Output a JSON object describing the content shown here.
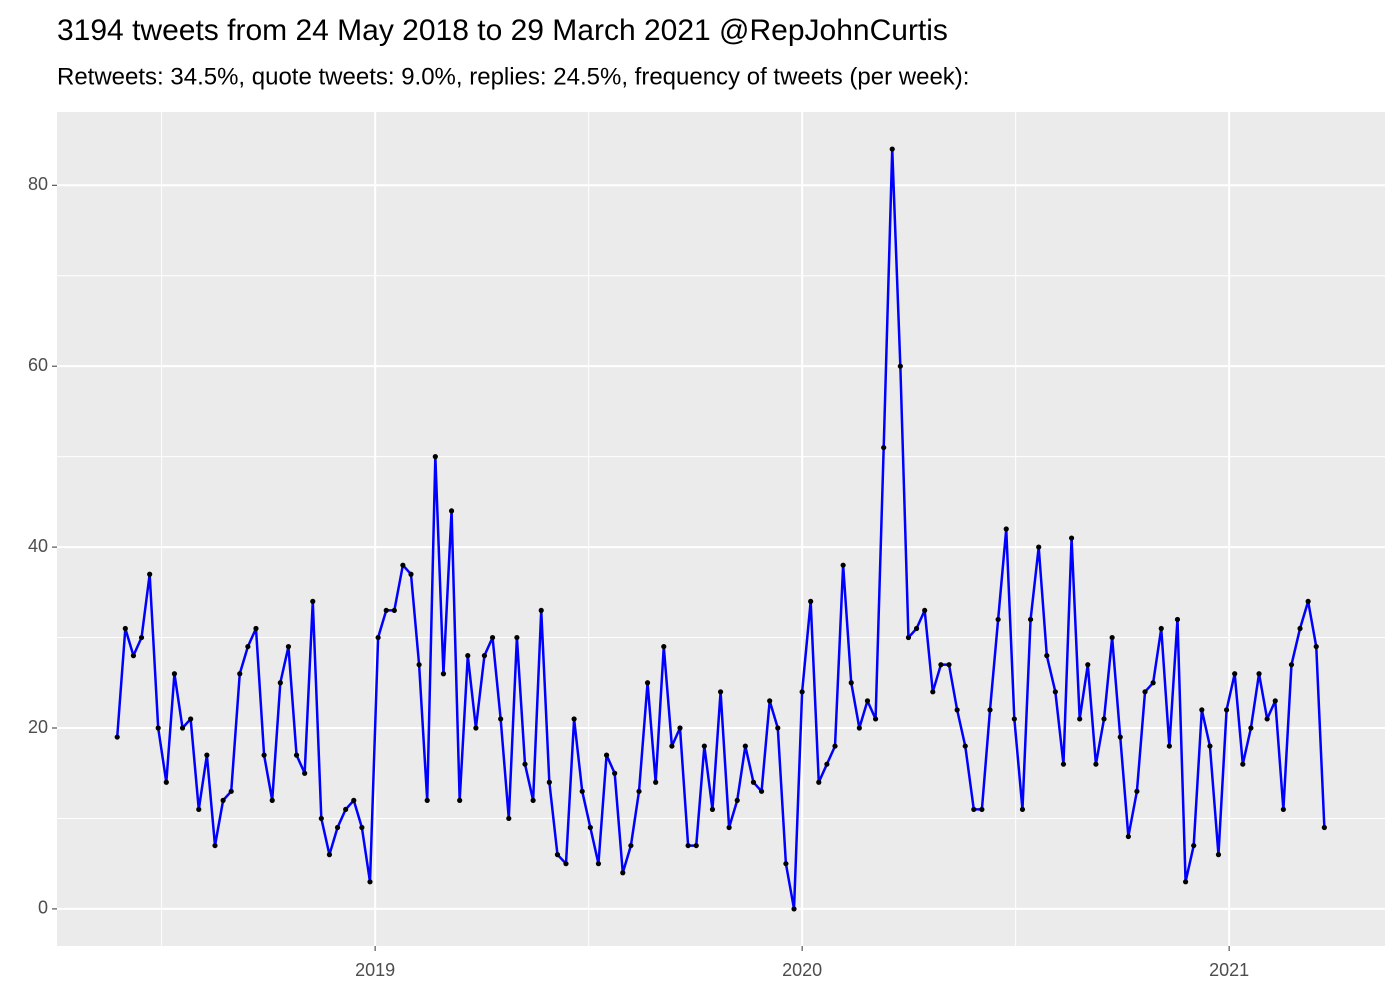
{
  "chart_data": {
    "type": "line",
    "title": "3194 tweets from 24 May 2018 to 29 March 2021 @RepJohnCurtis",
    "subtitle": "Retweets: 34.5%, quote tweets: 9.0%, replies: 24.5%, frequency of tweets (per week):",
    "x": [
      2018.396,
      2018.415,
      2018.434,
      2018.453,
      2018.472,
      2018.492,
      2018.511,
      2018.53,
      2018.549,
      2018.568,
      2018.587,
      2018.606,
      2018.625,
      2018.644,
      2018.663,
      2018.683,
      2018.702,
      2018.721,
      2018.74,
      2018.759,
      2018.778,
      2018.797,
      2018.816,
      2018.835,
      2018.854,
      2018.874,
      2018.893,
      2018.912,
      2018.931,
      2018.95,
      2018.969,
      2018.988,
      2019.007,
      2019.026,
      2019.045,
      2019.065,
      2019.084,
      2019.103,
      2019.122,
      2019.141,
      2019.16,
      2019.179,
      2019.198,
      2019.217,
      2019.236,
      2019.256,
      2019.275,
      2019.294,
      2019.313,
      2019.332,
      2019.351,
      2019.37,
      2019.389,
      2019.408,
      2019.427,
      2019.447,
      2019.466,
      2019.485,
      2019.504,
      2019.523,
      2019.542,
      2019.561,
      2019.58,
      2019.599,
      2019.618,
      2019.638,
      2019.657,
      2019.676,
      2019.695,
      2019.714,
      2019.733,
      2019.752,
      2019.771,
      2019.79,
      2019.809,
      2019.829,
      2019.848,
      2019.867,
      2019.886,
      2019.905,
      2019.924,
      2019.943,
      2019.962,
      2019.981,
      2020.0,
      2020.02,
      2020.039,
      2020.058,
      2020.077,
      2020.096,
      2020.115,
      2020.134,
      2020.153,
      2020.172,
      2020.191,
      2020.211,
      2020.23,
      2020.249,
      2020.268,
      2020.287,
      2020.306,
      2020.325,
      2020.344,
      2020.363,
      2020.382,
      2020.402,
      2020.421,
      2020.44,
      2020.459,
      2020.478,
      2020.497,
      2020.516,
      2020.535,
      2020.554,
      2020.573,
      2020.593,
      2020.612,
      2020.631,
      2020.65,
      2020.669,
      2020.688,
      2020.707,
      2020.726,
      2020.745,
      2020.764,
      2020.784,
      2020.803,
      2020.822,
      2020.841,
      2020.86,
      2020.879,
      2020.898,
      2020.917,
      2020.936,
      2020.955,
      2020.975,
      2020.994,
      2021.013,
      2021.032,
      2021.051,
      2021.07,
      2021.089,
      2021.108,
      2021.127,
      2021.146,
      2021.166,
      2021.185,
      2021.204,
      2021.223
    ],
    "series": [
      {
        "color": "#0000ff",
        "marker_color": "#000000",
        "values": [
          19,
          31,
          28,
          30,
          37,
          20,
          14,
          26,
          20,
          21,
          11,
          17,
          7,
          12,
          13,
          26,
          29,
          31,
          17,
          12,
          25,
          29,
          17,
          15,
          34,
          10,
          6,
          9,
          11,
          12,
          9,
          3,
          30,
          33,
          33,
          38,
          37,
          27,
          12,
          50,
          26,
          44,
          12,
          28,
          20,
          28,
          30,
          21,
          10,
          30,
          16,
          12,
          33,
          14,
          6,
          5,
          21,
          13,
          9,
          5,
          17,
          15,
          4,
          7,
          13,
          25,
          14,
          29,
          18,
          20,
          7,
          7,
          18,
          11,
          24,
          9,
          12,
          18,
          14,
          13,
          23,
          20,
          5,
          0,
          24,
          34,
          14,
          16,
          18,
          38,
          25,
          20,
          23,
          21,
          51,
          84,
          60,
          30,
          31,
          33,
          24,
          27,
          27,
          22,
          18,
          11,
          11,
          22,
          32,
          42,
          21,
          11,
          32,
          40,
          28,
          24,
          16,
          41,
          21,
          27,
          16,
          21,
          30,
          19,
          8,
          13,
          24,
          25,
          31,
          18,
          32,
          3,
          7,
          22,
          18,
          6,
          22,
          26,
          16,
          20,
          26,
          21,
          23,
          11,
          27,
          31,
          34,
          29,
          9
        ]
      }
    ],
    "xlim": [
      2018.255,
      2021.365
    ],
    "xticks": [
      2019,
      2020,
      2021
    ],
    "xminor": [
      2018.5,
      2019.5,
      2020.5
    ],
    "ylim": [
      -4.1,
      88.1
    ],
    "yticks": [
      0,
      20,
      40,
      60,
      80
    ],
    "yminor": [
      10,
      30,
      50,
      70
    ],
    "grid": true,
    "panel_color": "#ebebeb"
  }
}
